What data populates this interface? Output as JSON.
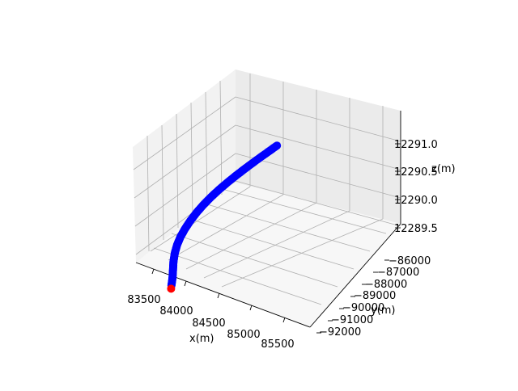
{
  "chart_data": {
    "type": "scatter",
    "projection": "3d",
    "title": "",
    "xlabel": "x(m)",
    "ylabel": "y(m)",
    "zlabel": "z(m)",
    "xlim": [
      83300,
      85800
    ],
    "ylim": [
      -92500,
      -85500
    ],
    "zlim": [
      12289.3,
      12291.5
    ],
    "x_ticks": [
      "83500",
      "84000",
      "84500",
      "85000",
      "85500"
    ],
    "y_ticks": [
      "−86000",
      "−87000",
      "−88000",
      "−89000",
      "−90000",
      "−91000",
      "−92000"
    ],
    "z_ticks": [
      "12289.5",
      "12290.0",
      "12290.5",
      "12291.0"
    ],
    "grid": true,
    "legend": "none",
    "series": [
      {
        "color": "#0000ff",
        "marker": "circle",
        "points": [
          [
            83450,
            -85700,
            12289.35
          ],
          [
            83445,
            -86000,
            12289.45
          ],
          [
            83420,
            -86350,
            12289.55
          ],
          [
            83395,
            -86700,
            12289.65
          ],
          [
            83390,
            -87050,
            12289.75
          ],
          [
            83410,
            -87400,
            12289.85
          ],
          [
            83460,
            -87750,
            12289.95
          ],
          [
            83540,
            -88050,
            12290.05
          ],
          [
            83640,
            -88350,
            12290.15
          ],
          [
            83760,
            -88650,
            12290.25
          ],
          [
            83900,
            -88900,
            12290.35
          ],
          [
            84060,
            -89150,
            12290.45
          ],
          [
            84240,
            -89400,
            12290.55
          ],
          [
            84440,
            -89650,
            12290.65
          ],
          [
            84650,
            -89850,
            12290.75
          ],
          [
            84870,
            -90050,
            12290.85
          ],
          [
            85100,
            -90250,
            12290.95
          ],
          [
            85340,
            -90450,
            12291.05
          ],
          [
            85580,
            -90650,
            12291.15
          ]
        ]
      },
      {
        "color": "#ff0000",
        "marker": "circle",
        "points": [
          [
            83450,
            -85650,
            12289.3
          ]
        ]
      }
    ]
  }
}
